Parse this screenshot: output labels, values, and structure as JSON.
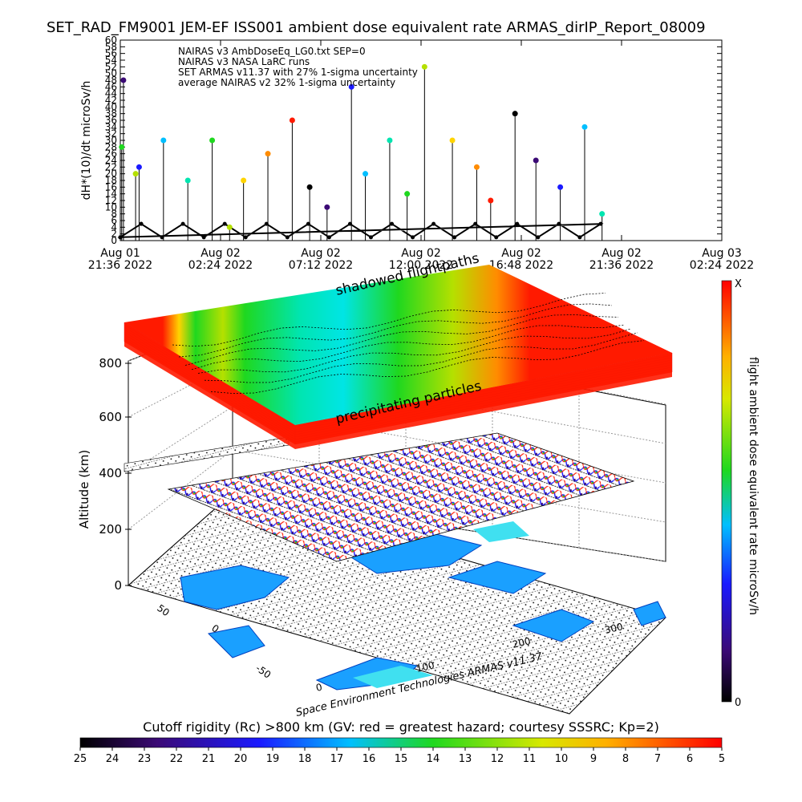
{
  "title": "SET_RAD_FM9001  JEM-EF ISS001 ambient dose equivalent rate ARMAS_dirIP_Report_08009",
  "chart_data": [
    {
      "type": "line",
      "ylabel": "dH*(10)/dt microSv/h",
      "ylim": [
        0,
        60
      ],
      "y_ticks": [
        "0",
        "2",
        "4",
        "6",
        "8",
        "10",
        "12",
        "14",
        "16",
        "18",
        "20",
        "22",
        "24",
        "26",
        "28",
        "30",
        "32",
        "34",
        "36",
        "38",
        "40",
        "42",
        "44",
        "46",
        "48",
        "50",
        "52",
        "54",
        "56",
        "58",
        "60"
      ],
      "x_ticks": [
        {
          "date": "Aug 01",
          "time": "21:36 2022"
        },
        {
          "date": "Aug 02",
          "time": "02:24 2022"
        },
        {
          "date": "Aug 02",
          "time": "07:12 2022"
        },
        {
          "date": "Aug 02",
          "time": "12:00 2022"
        },
        {
          "date": "Aug 02",
          "time": "16:48 2022"
        },
        {
          "date": "Aug 02",
          "time": "21:36 2022"
        },
        {
          "date": "Aug 03",
          "time": "02:24 2022"
        }
      ],
      "legend": [
        "NAIRAS v3 AmbDoseEq_LG0.txt SEP=0",
        "NAIRAS v3 NASA LaRC runs",
        "SET ARMAS v11.37 with 27% 1-sigma uncertainty",
        "average NAIRAS v2 32% 1-sigma uncertainty"
      ],
      "legend_placement": "top-left",
      "series": [
        {
          "name": "NAIRAS v3 NASA LaRC runs",
          "style": "black oscillating baseline",
          "x": [
            "21:36",
            "22:36",
            "23:36",
            "00:36",
            "01:36",
            "02:36",
            "03:36",
            "04:36",
            "05:36",
            "06:36",
            "07:36",
            "08:36",
            "09:36",
            "10:36",
            "11:36",
            "12:36",
            "13:36",
            "14:36",
            "15:36",
            "16:36",
            "17:36",
            "18:36",
            "19:36",
            "20:36",
            "21:36",
            "22:36"
          ],
          "values": [
            1,
            5,
            1,
            5,
            1,
            5,
            1,
            5,
            1,
            5,
            1,
            5,
            1,
            5,
            1,
            5,
            1,
            5,
            1,
            5,
            1,
            5,
            1,
            5,
            1,
            5
          ]
        },
        {
          "name": "SET ARMAS v11.37 with 27% 1-sigma uncertainty",
          "style": "colored points, color = dose rate",
          "x": [
            "21:45",
            "22:30",
            "23:40",
            "00:50",
            "02:00",
            "02:50",
            "03:30",
            "04:40",
            "05:50",
            "06:40",
            "07:30",
            "08:40",
            "09:20",
            "10:30",
            "11:20",
            "12:10",
            "13:30",
            "14:40",
            "15:20",
            "16:30",
            "17:30",
            "18:40",
            "19:50",
            "20:40",
            "21:40",
            "22:20"
          ],
          "values": [
            48,
            22,
            30,
            18,
            30,
            4,
            18,
            26,
            36,
            16,
            10,
            46,
            20,
            30,
            14,
            52,
            30,
            22,
            12,
            38,
            24,
            16,
            34,
            8,
            28,
            20
          ]
        }
      ],
      "grid": false
    },
    {
      "type": "surface-3d",
      "ylabel": "Altitude (km)",
      "z_ticks": [
        "0",
        "200",
        "400",
        "600",
        "800"
      ],
      "lat_ticks": [
        "-50",
        "0",
        "50"
      ],
      "lon_ticks": [
        "0",
        "100",
        "200",
        "300"
      ],
      "annotations": [
        "shadowed flightpaths",
        "precipitating particles"
      ],
      "credit": "Space Environment Technologies ARMAS v11.37",
      "colorbar": {
        "label": "flight ambient dose equivalent rate microSv/h",
        "top": "X",
        "bottom": "0",
        "colors": [
          "#000000",
          "#3b0a75",
          "#1a1aff",
          "#00bfff",
          "#00e5b0",
          "#1fd81f",
          "#b5e000",
          "#ffd400",
          "#ff8c00",
          "#ff1a00"
        ]
      }
    },
    {
      "type": "colorbar",
      "title": "Cutoff rigidity (Rc) >800 km (GV: red = greatest hazard; courtesy SSSRC; Kp=2)",
      "ticks": [
        "25",
        "24",
        "23",
        "22",
        "21",
        "20",
        "19",
        "18",
        "17",
        "16",
        "15",
        "14",
        "13",
        "12",
        "11",
        "10",
        "9",
        "8",
        "7",
        "6",
        "5"
      ]
    }
  ]
}
